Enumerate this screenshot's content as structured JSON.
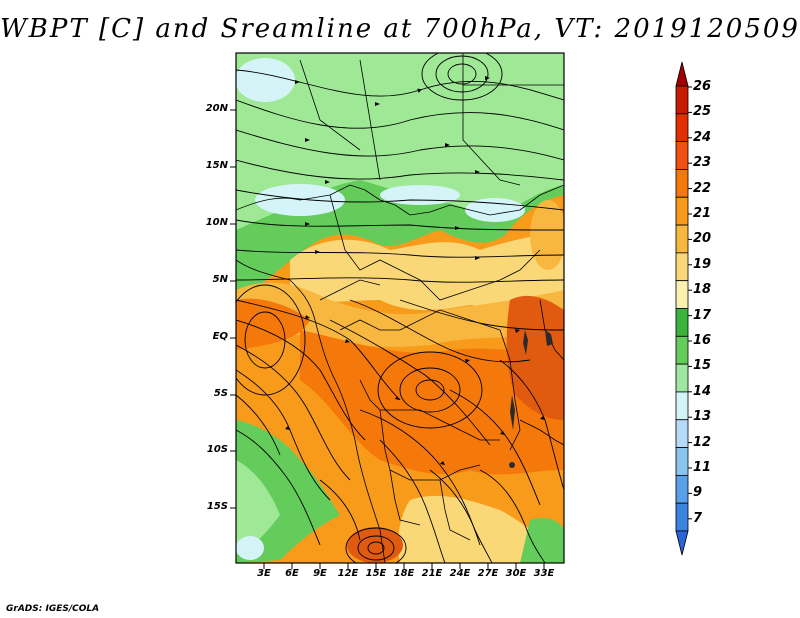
{
  "title": "WBPT [C] and Sreamline at 700hPa, VT: 2019120509",
  "footer": "GrADS: IGES/COLA",
  "latitude_labels": [
    "20N",
    "15N",
    "10N",
    "5N",
    "EQ",
    "5S",
    "10S",
    "15S"
  ],
  "longitude_labels": [
    "3E",
    "6E",
    "9E",
    "12E",
    "15E",
    "18E",
    "21E",
    "24E",
    "27E",
    "30E",
    "33E"
  ],
  "colorbar": {
    "labels": [
      "26",
      "25",
      "24",
      "23",
      "22",
      "21",
      "20",
      "19",
      "18",
      "17",
      "16",
      "15",
      "14",
      "13",
      "12",
      "11",
      "9",
      "7"
    ],
    "colors": [
      "#a00000",
      "#c81a00",
      "#e03000",
      "#f05010",
      "#f5780a",
      "#f89a1a",
      "#f8b840",
      "#fad878",
      "#fcf0b0",
      "#3cb43c",
      "#64cc5a",
      "#a0e6a0",
      "#d4f4f8",
      "#b4dcf8",
      "#8cc4f0",
      "#5aa0e8",
      "#3c82e0",
      "#2a64d8"
    ]
  },
  "map_colors": {
    "north_green": "#9ee896",
    "mid_green": "#64cc5a",
    "light_cyan": "#d4f4f8",
    "yellow": "#fad878",
    "light_orange": "#f8b840",
    "orange": "#f89a1a",
    "deep_orange": "#f5780a",
    "red_orange": "#e05a10"
  }
}
